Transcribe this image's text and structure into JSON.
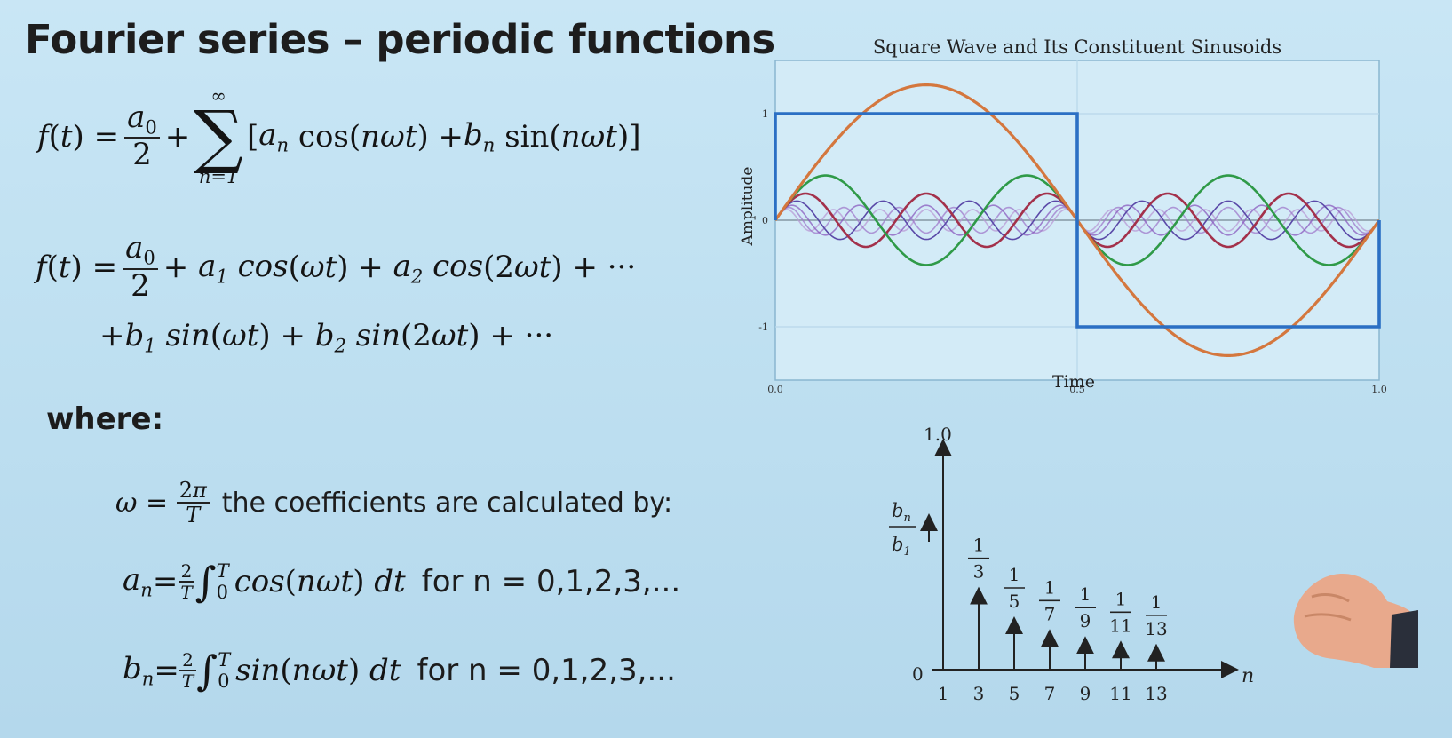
{
  "slide": {
    "title": "Fourier series – periodic functions",
    "where_label": "where:",
    "omega_text": "the coefficients are calculated by:",
    "an_range": "for n = 0,1,2,3,...",
    "bn_range": "for n = 0,1,2,3,..."
  },
  "chart_data": [
    {
      "type": "line",
      "title": "Square Wave and Its Constituent Sinusoids",
      "xlabel": "Time",
      "ylabel": "Amplitude",
      "xlim": [
        0,
        1
      ],
      "ylim": [
        -1.5,
        1.5
      ],
      "x_ticks": [
        "0.0",
        "0.5",
        "1.0"
      ],
      "y_ticks": [
        "1",
        "0",
        "-1"
      ],
      "grid": true,
      "series": [
        {
          "kind": "square",
          "amplitude": 1,
          "color": "#2b6fc4"
        },
        {
          "kind": "sine",
          "harmonic": 1,
          "amplitude": 1.27,
          "color": "#d4773e"
        },
        {
          "kind": "sine",
          "harmonic": 3,
          "amplitude": 0.42,
          "color": "#2f9a48"
        },
        {
          "kind": "sine",
          "harmonic": 5,
          "amplitude": 0.25,
          "color": "#a3314b"
        },
        {
          "kind": "sine",
          "harmonic": 7,
          "amplitude": 0.18,
          "color": "#5b4aa8"
        },
        {
          "kind": "sine",
          "harmonic": 9,
          "amplitude": 0.14,
          "color": "#8a5bbf"
        },
        {
          "kind": "sine",
          "harmonic": 11,
          "amplitude": 0.12,
          "color": "#9f7acb"
        },
        {
          "kind": "sine",
          "harmonic": 13,
          "amplitude": 0.1,
          "color": "#b89ad6"
        }
      ]
    },
    {
      "type": "bar",
      "title": "",
      "xlabel": "n",
      "y_top_label": "1.0",
      "y_zero_label": "0",
      "ylim": [
        0,
        1
      ],
      "categories": [
        "1",
        "3",
        "5",
        "7",
        "9",
        "11",
        "13"
      ],
      "values": [
        1,
        0.3333,
        0.2,
        0.1429,
        0.1111,
        0.0909,
        0.0769
      ],
      "value_labels": [
        {
          "num": "1",
          "den": "3"
        },
        {
          "num": "1",
          "den": "5"
        },
        {
          "num": "1",
          "den": "7"
        },
        {
          "num": "1",
          "den": "9"
        },
        {
          "num": "1",
          "den": "11"
        },
        {
          "num": "1",
          "den": "13"
        }
      ]
    }
  ]
}
